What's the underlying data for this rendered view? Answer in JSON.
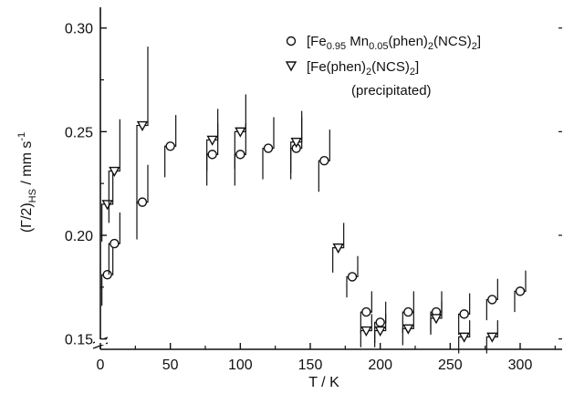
{
  "chart_data": {
    "type": "scatter",
    "xlabel": "T / K",
    "ylabel": "(Γ/2)",
    "ylabel_sub": "HS",
    "ylabel_unit": " / mm s",
    "ylabel_sup": "-1",
    "xlim": [
      0,
      330
    ],
    "ylim": [
      0.145,
      0.31
    ],
    "x_ticks": [
      "0",
      "50",
      "100",
      "150",
      "200",
      "250",
      "300"
    ],
    "x_tick_values": [
      0,
      50,
      100,
      150,
      200,
      250,
      300
    ],
    "y_ticks": [
      "0.15",
      "0.20",
      "0.25",
      "0.30"
    ],
    "y_tick_values": [
      0.15,
      0.2,
      0.25,
      0.3
    ],
    "axis_break": "y",
    "grid": false,
    "legend_position": "top-right",
    "series": [
      {
        "name_parts": [
          "[Fe",
          "0.95",
          " Mn",
          "0.05",
          "(phen)",
          "2",
          "(NCS)",
          "2",
          "]"
        ],
        "marker": "circle",
        "points": [
          {
            "x": 5,
            "y": 0.181,
            "err": 0.015
          },
          {
            "x": 10,
            "y": 0.196,
            "err": 0.015
          },
          {
            "x": 30,
            "y": 0.216,
            "err": 0.018
          },
          {
            "x": 50,
            "y": 0.243,
            "err": 0.015
          },
          {
            "x": 80,
            "y": 0.239,
            "err": 0.015
          },
          {
            "x": 100,
            "y": 0.239,
            "err": 0.015
          },
          {
            "x": 120,
            "y": 0.242,
            "err": 0.015
          },
          {
            "x": 140,
            "y": 0.242,
            "err": 0.015
          },
          {
            "x": 160,
            "y": 0.236,
            "err": 0.015
          },
          {
            "x": 180,
            "y": 0.18,
            "err": 0.01
          },
          {
            "x": 190,
            "y": 0.163,
            "err": 0.01
          },
          {
            "x": 200,
            "y": 0.158,
            "err": 0.01
          },
          {
            "x": 220,
            "y": 0.163,
            "err": 0.01
          },
          {
            "x": 240,
            "y": 0.163,
            "err": 0.01
          },
          {
            "x": 260,
            "y": 0.162,
            "err": 0.01
          },
          {
            "x": 280,
            "y": 0.169,
            "err": 0.01
          },
          {
            "x": 300,
            "y": 0.173,
            "err": 0.01
          }
        ]
      },
      {
        "name_parts": [
          "[Fe(phen)",
          "2",
          "(NCS)",
          "2",
          "]"
        ],
        "name_note": "(precipitated)",
        "marker": "triangle-down",
        "points": [
          {
            "x": 5,
            "y": 0.215,
            "err": 0.018
          },
          {
            "x": 10,
            "y": 0.231,
            "err": 0.025
          },
          {
            "x": 30,
            "y": 0.253,
            "err": 0.038
          },
          {
            "x": 80,
            "y": 0.246,
            "err": 0.015
          },
          {
            "x": 100,
            "y": 0.25,
            "err": 0.018
          },
          {
            "x": 140,
            "y": 0.245,
            "err": 0.015
          },
          {
            "x": 170,
            "y": 0.194,
            "err": 0.012
          },
          {
            "x": 190,
            "y": 0.154,
            "err": 0.008
          },
          {
            "x": 200,
            "y": 0.154,
            "err": 0.008
          },
          {
            "x": 220,
            "y": 0.155,
            "err": 0.008
          },
          {
            "x": 240,
            "y": 0.16,
            "err": 0.008
          },
          {
            "x": 260,
            "y": 0.151,
            "err": 0.008
          },
          {
            "x": 280,
            "y": 0.151,
            "err": 0.008
          }
        ]
      }
    ]
  }
}
